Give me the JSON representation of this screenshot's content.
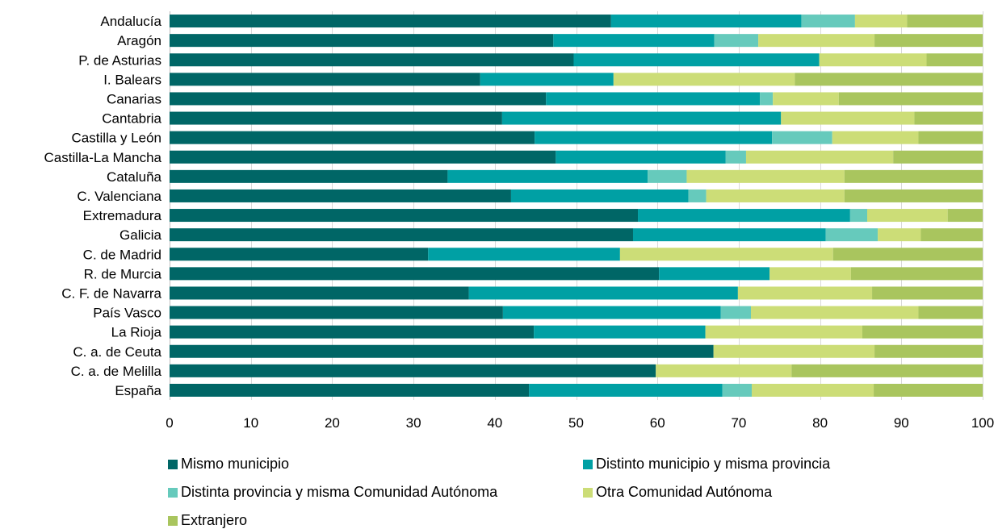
{
  "chart_data": {
    "type": "bar",
    "orientation": "horizontal",
    "stacked": true,
    "title": "",
    "xlabel": "",
    "ylabel": "",
    "xlim": [
      0,
      100
    ],
    "xticks": [
      0,
      10,
      20,
      30,
      40,
      50,
      60,
      70,
      80,
      90,
      100
    ],
    "grid": "vertical",
    "legend_position": "bottom",
    "categories": [
      "Andalucía",
      "Aragón",
      "P. de Asturias",
      "I. Balears",
      "Canarias",
      "Cantabria",
      "Castilla y León",
      "Castilla-La Mancha",
      "Cataluña",
      "C. Valenciana",
      "Extremadura",
      "Galicia",
      "C. de Madrid",
      "R. de Murcia",
      "C. F. de Navarra",
      "País Vasco",
      "La Rioja",
      "C. a. de Ceuta",
      "C. a. de Melilla",
      "España"
    ],
    "series": [
      {
        "name": "Mismo municipio",
        "color": "#006666",
        "values": [
          54.3,
          47.2,
          49.7,
          38.2,
          46.3,
          40.9,
          44.9,
          47.5,
          34.2,
          42.0,
          57.6,
          57.0,
          31.8,
          60.2,
          36.8,
          41.0,
          44.8,
          66.9,
          59.8,
          44.2
        ]
      },
      {
        "name": "Distinto municipio y misma provincia",
        "color": "#00a0a4",
        "values": [
          23.4,
          19.8,
          30.2,
          16.4,
          26.3,
          34.3,
          29.2,
          20.9,
          24.6,
          21.8,
          26.1,
          23.7,
          23.6,
          13.6,
          33.1,
          26.8,
          21.1,
          0,
          0,
          23.8
        ]
      },
      {
        "name": "Distinta provincia y misma Comunidad Autónoma",
        "color": "#66cabc",
        "values": [
          6.6,
          5.4,
          0,
          0,
          1.6,
          0,
          7.4,
          2.5,
          4.8,
          2.2,
          2.1,
          6.4,
          0,
          0,
          0,
          3.7,
          0,
          0,
          0,
          3.6
        ]
      },
      {
        "name": "Otra Comunidad Autónoma",
        "color": "#ccdd77",
        "values": [
          6.4,
          14.3,
          13.2,
          22.3,
          8.1,
          16.4,
          10.6,
          18.1,
          19.4,
          17.0,
          9.9,
          5.3,
          26.2,
          10.0,
          16.5,
          20.6,
          19.3,
          19.8,
          16.7,
          15.0
        ]
      },
      {
        "name": "Extranjero",
        "color": "#a9c55e",
        "values": [
          9.3,
          13.3,
          6.9,
          23.1,
          17.7,
          8.4,
          7.9,
          11.0,
          17.0,
          17.0,
          4.3,
          7.6,
          18.4,
          16.2,
          13.6,
          7.9,
          14.8,
          13.3,
          23.5,
          13.4
        ]
      }
    ]
  }
}
